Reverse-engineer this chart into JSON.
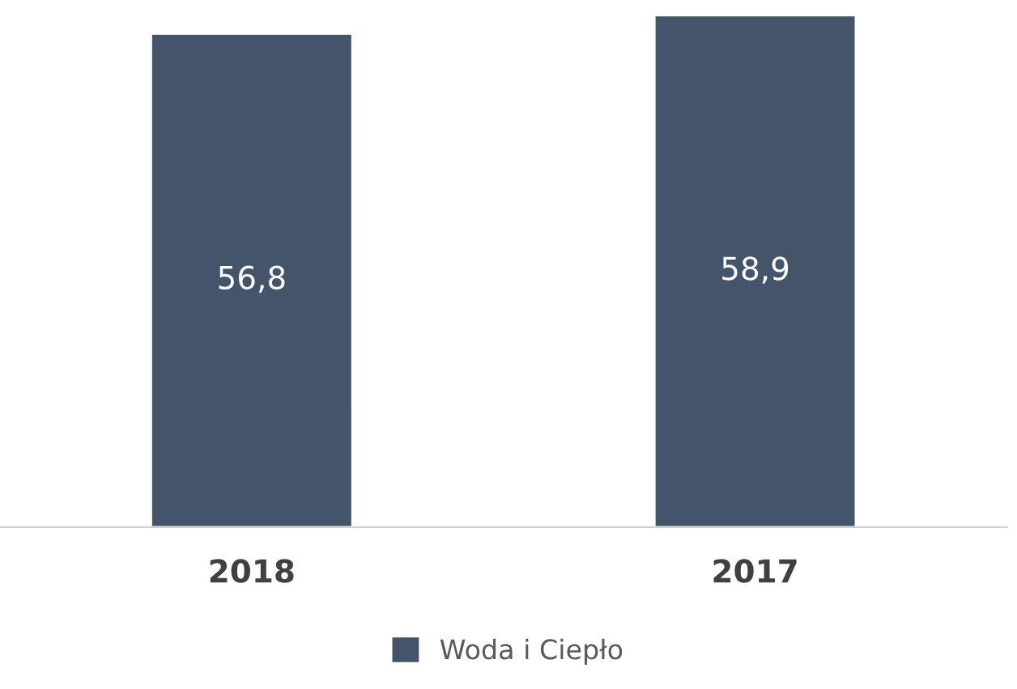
{
  "chart_data": {
    "type": "bar",
    "categories": [
      "2018",
      "2017"
    ],
    "series": [
      {
        "name": "Woda i Ciepło",
        "color": "#44546a",
        "values": [
          56.8,
          58.9
        ],
        "value_labels": [
          "56,8",
          "58,9"
        ]
      }
    ],
    "legend": "bottom"
  }
}
